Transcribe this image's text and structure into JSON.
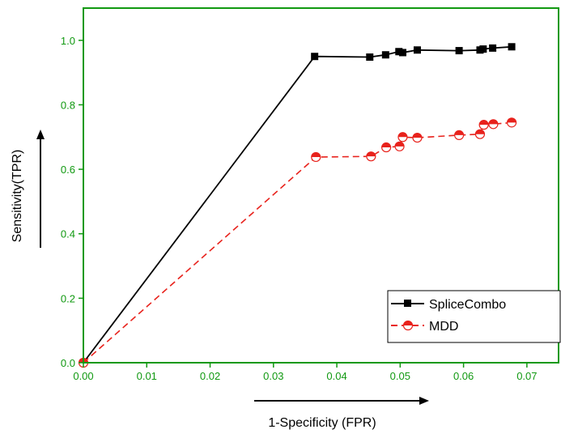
{
  "chart_data": {
    "type": "line",
    "xlabel": "1-Specificity (FPR)",
    "ylabel": "Sensitivity(TPR)",
    "xlim": [
      0,
      0.075
    ],
    "ylim": [
      0,
      1.1
    ],
    "x_ticks": [
      "0.00",
      "0.01",
      "0.02",
      "0.03",
      "0.04",
      "0.05",
      "0.06",
      "0.07"
    ],
    "y_ticks": [
      "0.0",
      "0.2",
      "0.4",
      "0.6",
      "0.8",
      "1.0"
    ],
    "axis_color": "#119911",
    "legend_position": "bottom-right",
    "series": [
      {
        "name": "SpliceCombo",
        "color": "#000000",
        "line_style": "solid",
        "marker": "square",
        "x": [
          0.0,
          0.0365,
          0.0452,
          0.0477,
          0.0498,
          0.0504,
          0.0527,
          0.0593,
          0.0626,
          0.0631,
          0.0646,
          0.0676
        ],
        "y": [
          0.0,
          0.95,
          0.948,
          0.955,
          0.965,
          0.962,
          0.97,
          0.968,
          0.97,
          0.973,
          0.976,
          0.98
        ]
      },
      {
        "name": "MDD",
        "color": "#e8221c",
        "line_style": "dashed",
        "marker": "half-circle",
        "x": [
          0.0,
          0.0367,
          0.0454,
          0.0478,
          0.0499,
          0.0504,
          0.0527,
          0.0593,
          0.0626,
          0.0632,
          0.0647,
          0.0676
        ],
        "y": [
          0.0,
          0.638,
          0.64,
          0.668,
          0.671,
          0.7,
          0.698,
          0.706,
          0.709,
          0.738,
          0.74,
          0.745
        ]
      }
    ]
  }
}
